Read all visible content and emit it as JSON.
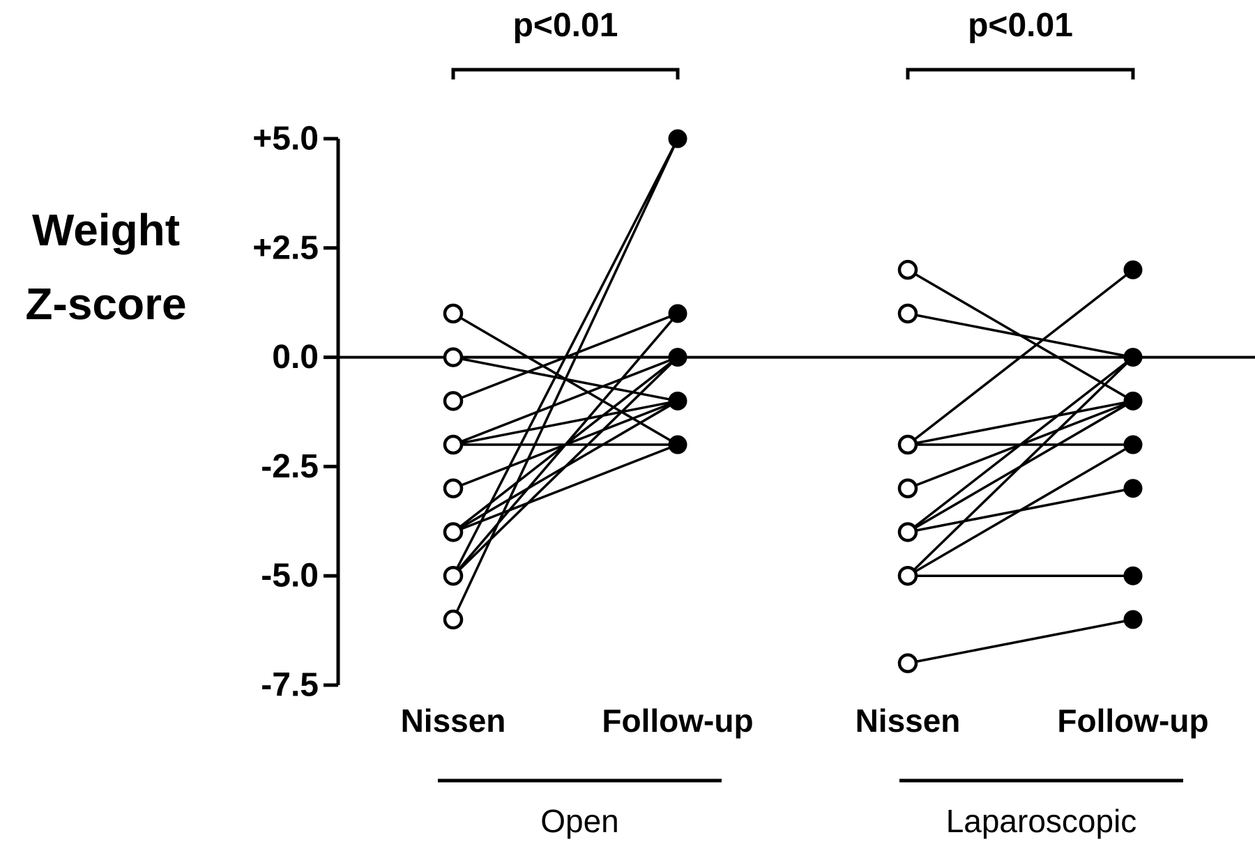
{
  "chart_data": {
    "type": "line",
    "ylabel_lines": [
      "Weight",
      "Z-score"
    ],
    "yticks": [
      {
        "value": 5.0,
        "label": "+5.0"
      },
      {
        "value": 2.5,
        "label": "+2.5"
      },
      {
        "value": 0.0,
        "label": "0.0"
      },
      {
        "value": -2.5,
        "label": "-2.5"
      },
      {
        "value": -5.0,
        "label": "-5.0"
      },
      {
        "value": -7.5,
        "label": "-7.5"
      }
    ],
    "ylim": [
      -7.5,
      5.0
    ],
    "reference_line": 0,
    "grid": false,
    "legend": "none",
    "groups": [
      {
        "name": "Open",
        "x_labels": [
          "Nissen",
          "Follow-up"
        ],
        "p_value": "p<0.01",
        "pairs": [
          {
            "before": 1,
            "after": -2
          },
          {
            "before": 0,
            "after": 0
          },
          {
            "before": 0,
            "after": -1
          },
          {
            "before": -1,
            "after": 1
          },
          {
            "before": -2,
            "after": 0
          },
          {
            "before": -2,
            "after": -1
          },
          {
            "before": -2,
            "after": -2
          },
          {
            "before": -3,
            "after": -1
          },
          {
            "before": -4,
            "after": 0
          },
          {
            "before": -4,
            "after": -1
          },
          {
            "before": -4,
            "after": -2
          },
          {
            "before": -5,
            "after": 1
          },
          {
            "before": -5,
            "after": 5
          },
          {
            "before": -5,
            "after": 0
          },
          {
            "before": -6,
            "after": 5
          }
        ]
      },
      {
        "name": "Laparoscopic",
        "x_labels": [
          "Nissen",
          "Follow-up"
        ],
        "p_value": "p<0.01",
        "pairs": [
          {
            "before": 2,
            "after": -1
          },
          {
            "before": 1,
            "after": 0
          },
          {
            "before": -2,
            "after": 2
          },
          {
            "before": -2,
            "after": -2
          },
          {
            "before": -2,
            "after": -1
          },
          {
            "before": -3,
            "after": -1
          },
          {
            "before": -4,
            "after": 0
          },
          {
            "before": -4,
            "after": -1
          },
          {
            "before": -4,
            "after": -3
          },
          {
            "before": -5,
            "after": 0
          },
          {
            "before": -5,
            "after": -2
          },
          {
            "before": -5,
            "after": -5
          },
          {
            "before": -7,
            "after": -6
          }
        ]
      }
    ],
    "colors": {
      "line": "#000000",
      "open_marker_fill": "#ffffff",
      "filled_marker_fill": "#000000"
    }
  }
}
